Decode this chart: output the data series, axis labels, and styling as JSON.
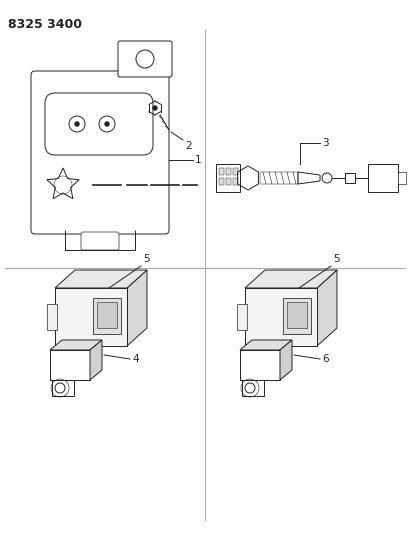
{
  "title": "8325 3400",
  "bg": "#ffffff",
  "lc": "#222222",
  "glc": "#aaaaaa",
  "fig_w": 4.1,
  "fig_h": 5.33,
  "dpi": 100
}
